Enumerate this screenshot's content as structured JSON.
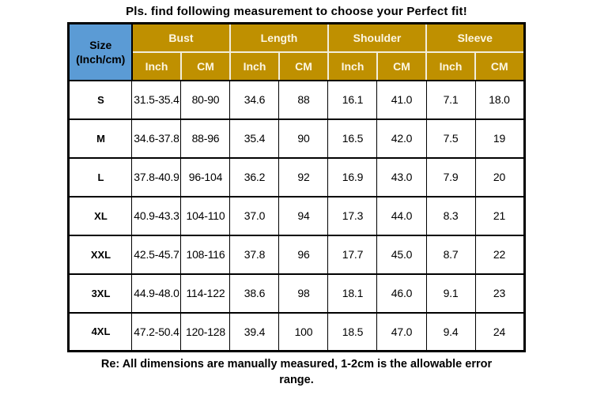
{
  "page": {
    "title": "Pls. find following measurement to choose your Perfect fit!",
    "footnote": "Re: All dimensions are manually measured, 1-2cm is the allowable error range."
  },
  "colors": {
    "header_gold": "#BF9000",
    "header_blue": "#5B9BD5",
    "header_text": "#FCF6E3",
    "body_text": "#000000",
    "header_divider": "#F2EEDC",
    "grid_border": "#000000"
  },
  "table": {
    "corner_line1": "Size",
    "corner_line2": "(Inch/cm)",
    "groups": [
      {
        "label": "Bust",
        "sub": [
          "Inch",
          "CM"
        ]
      },
      {
        "label": "Length",
        "sub": [
          "Inch",
          "CM"
        ]
      },
      {
        "label": "Shoulder",
        "sub": [
          "Inch",
          "CM"
        ]
      },
      {
        "label": "Sleeve",
        "sub": [
          "Inch",
          "CM"
        ]
      }
    ],
    "rows": [
      {
        "size": "S",
        "values": [
          "31.5-35.4",
          "80-90",
          "34.6",
          "88",
          "16.1",
          "41.0",
          "7.1",
          "18.0"
        ]
      },
      {
        "size": "M",
        "values": [
          "34.6-37.8",
          "88-96",
          "35.4",
          "90",
          "16.5",
          "42.0",
          "7.5",
          "19"
        ]
      },
      {
        "size": "L",
        "values": [
          "37.8-40.9",
          "96-104",
          "36.2",
          "92",
          "16.9",
          "43.0",
          "7.9",
          "20"
        ]
      },
      {
        "size": "XL",
        "values": [
          "40.9-43.3",
          "104-110",
          "37.0",
          "94",
          "17.3",
          "44.0",
          "8.3",
          "21"
        ]
      },
      {
        "size": "XXL",
        "values": [
          "42.5-45.7",
          "108-116",
          "37.8",
          "96",
          "17.7",
          "45.0",
          "8.7",
          "22"
        ]
      },
      {
        "size": "3XL",
        "values": [
          "44.9-48.0",
          "114-122",
          "38.6",
          "98",
          "18.1",
          "46.0",
          "9.1",
          "23"
        ]
      },
      {
        "size": "4XL",
        "values": [
          "47.2-50.4",
          "120-128",
          "39.4",
          "100",
          "18.5",
          "47.0",
          "9.4",
          "24"
        ]
      }
    ]
  }
}
